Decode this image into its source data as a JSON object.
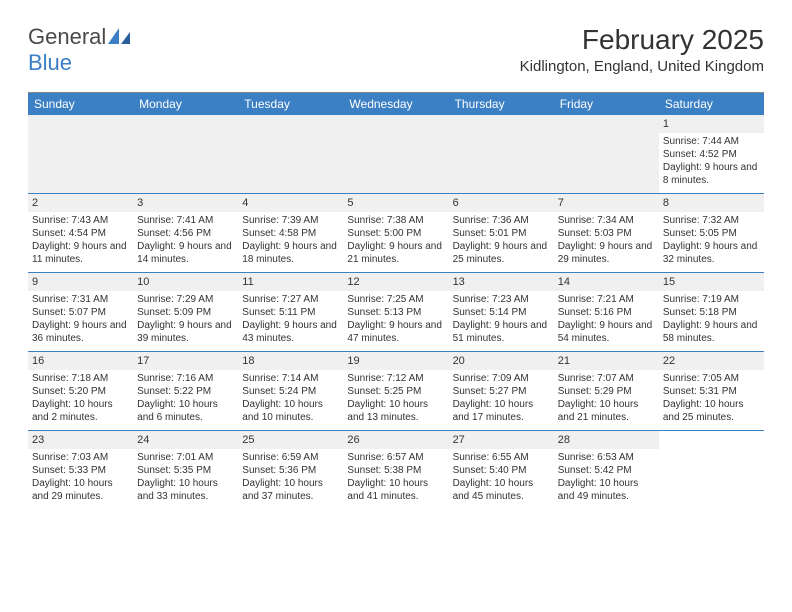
{
  "logo": {
    "general": "General",
    "blue": "Blue"
  },
  "title": "February 2025",
  "location": "Kidlington, England, United Kingdom",
  "colors": {
    "header_bg": "#3b7fc4",
    "header_text": "#ffffff",
    "date_bg": "#f0f0f0",
    "border": "#3b7fc4",
    "text": "#333333"
  },
  "day_labels": [
    "Sunday",
    "Monday",
    "Tuesday",
    "Wednesday",
    "Thursday",
    "Friday",
    "Saturday"
  ],
  "weeks": [
    [
      null,
      null,
      null,
      null,
      null,
      null,
      {
        "d": "1",
        "sr": "Sunrise: 7:44 AM",
        "ss": "Sunset: 4:52 PM",
        "dl": "Daylight: 9 hours and 8 minutes."
      }
    ],
    [
      {
        "d": "2",
        "sr": "Sunrise: 7:43 AM",
        "ss": "Sunset: 4:54 PM",
        "dl": "Daylight: 9 hours and 11 minutes."
      },
      {
        "d": "3",
        "sr": "Sunrise: 7:41 AM",
        "ss": "Sunset: 4:56 PM",
        "dl": "Daylight: 9 hours and 14 minutes."
      },
      {
        "d": "4",
        "sr": "Sunrise: 7:39 AM",
        "ss": "Sunset: 4:58 PM",
        "dl": "Daylight: 9 hours and 18 minutes."
      },
      {
        "d": "5",
        "sr": "Sunrise: 7:38 AM",
        "ss": "Sunset: 5:00 PM",
        "dl": "Daylight: 9 hours and 21 minutes."
      },
      {
        "d": "6",
        "sr": "Sunrise: 7:36 AM",
        "ss": "Sunset: 5:01 PM",
        "dl": "Daylight: 9 hours and 25 minutes."
      },
      {
        "d": "7",
        "sr": "Sunrise: 7:34 AM",
        "ss": "Sunset: 5:03 PM",
        "dl": "Daylight: 9 hours and 29 minutes."
      },
      {
        "d": "8",
        "sr": "Sunrise: 7:32 AM",
        "ss": "Sunset: 5:05 PM",
        "dl": "Daylight: 9 hours and 32 minutes."
      }
    ],
    [
      {
        "d": "9",
        "sr": "Sunrise: 7:31 AM",
        "ss": "Sunset: 5:07 PM",
        "dl": "Daylight: 9 hours and 36 minutes."
      },
      {
        "d": "10",
        "sr": "Sunrise: 7:29 AM",
        "ss": "Sunset: 5:09 PM",
        "dl": "Daylight: 9 hours and 39 minutes."
      },
      {
        "d": "11",
        "sr": "Sunrise: 7:27 AM",
        "ss": "Sunset: 5:11 PM",
        "dl": "Daylight: 9 hours and 43 minutes."
      },
      {
        "d": "12",
        "sr": "Sunrise: 7:25 AM",
        "ss": "Sunset: 5:13 PM",
        "dl": "Daylight: 9 hours and 47 minutes."
      },
      {
        "d": "13",
        "sr": "Sunrise: 7:23 AM",
        "ss": "Sunset: 5:14 PM",
        "dl": "Daylight: 9 hours and 51 minutes."
      },
      {
        "d": "14",
        "sr": "Sunrise: 7:21 AM",
        "ss": "Sunset: 5:16 PM",
        "dl": "Daylight: 9 hours and 54 minutes."
      },
      {
        "d": "15",
        "sr": "Sunrise: 7:19 AM",
        "ss": "Sunset: 5:18 PM",
        "dl": "Daylight: 9 hours and 58 minutes."
      }
    ],
    [
      {
        "d": "16",
        "sr": "Sunrise: 7:18 AM",
        "ss": "Sunset: 5:20 PM",
        "dl": "Daylight: 10 hours and 2 minutes."
      },
      {
        "d": "17",
        "sr": "Sunrise: 7:16 AM",
        "ss": "Sunset: 5:22 PM",
        "dl": "Daylight: 10 hours and 6 minutes."
      },
      {
        "d": "18",
        "sr": "Sunrise: 7:14 AM",
        "ss": "Sunset: 5:24 PM",
        "dl": "Daylight: 10 hours and 10 minutes."
      },
      {
        "d": "19",
        "sr": "Sunrise: 7:12 AM",
        "ss": "Sunset: 5:25 PM",
        "dl": "Daylight: 10 hours and 13 minutes."
      },
      {
        "d": "20",
        "sr": "Sunrise: 7:09 AM",
        "ss": "Sunset: 5:27 PM",
        "dl": "Daylight: 10 hours and 17 minutes."
      },
      {
        "d": "21",
        "sr": "Sunrise: 7:07 AM",
        "ss": "Sunset: 5:29 PM",
        "dl": "Daylight: 10 hours and 21 minutes."
      },
      {
        "d": "22",
        "sr": "Sunrise: 7:05 AM",
        "ss": "Sunset: 5:31 PM",
        "dl": "Daylight: 10 hours and 25 minutes."
      }
    ],
    [
      {
        "d": "23",
        "sr": "Sunrise: 7:03 AM",
        "ss": "Sunset: 5:33 PM",
        "dl": "Daylight: 10 hours and 29 minutes."
      },
      {
        "d": "24",
        "sr": "Sunrise: 7:01 AM",
        "ss": "Sunset: 5:35 PM",
        "dl": "Daylight: 10 hours and 33 minutes."
      },
      {
        "d": "25",
        "sr": "Sunrise: 6:59 AM",
        "ss": "Sunset: 5:36 PM",
        "dl": "Daylight: 10 hours and 37 minutes."
      },
      {
        "d": "26",
        "sr": "Sunrise: 6:57 AM",
        "ss": "Sunset: 5:38 PM",
        "dl": "Daylight: 10 hours and 41 minutes."
      },
      {
        "d": "27",
        "sr": "Sunrise: 6:55 AM",
        "ss": "Sunset: 5:40 PM",
        "dl": "Daylight: 10 hours and 45 minutes."
      },
      {
        "d": "28",
        "sr": "Sunrise: 6:53 AM",
        "ss": "Sunset: 5:42 PM",
        "dl": "Daylight: 10 hours and 49 minutes."
      },
      null
    ]
  ]
}
